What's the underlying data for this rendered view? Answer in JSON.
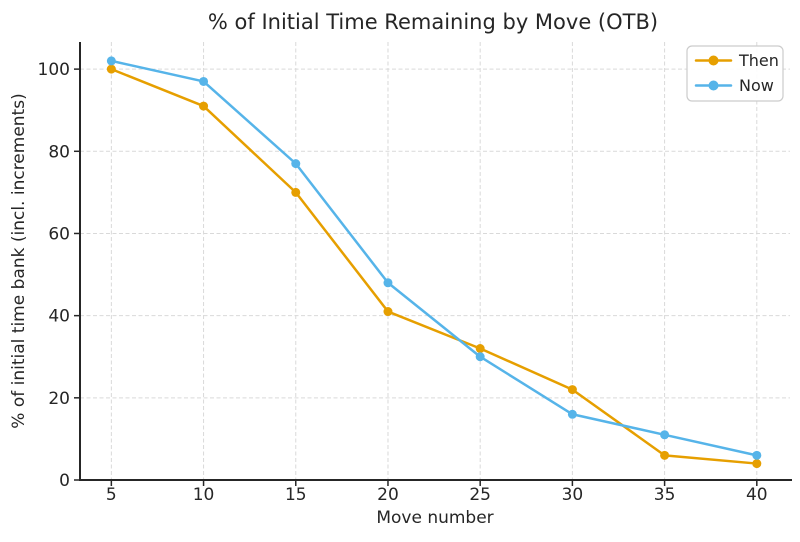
{
  "chart_data": {
    "type": "line",
    "title": "% of Initial Time Remaining by Move (OTB)",
    "xlabel": "Move number",
    "ylabel": "% of initial time bank (incl. increments)",
    "x": [
      5,
      10,
      15,
      20,
      25,
      30,
      35,
      40
    ],
    "series": [
      {
        "name": "Then",
        "color": "#E69F00",
        "values": [
          100,
          91,
          70,
          41,
          32,
          22,
          6,
          4
        ]
      },
      {
        "name": "Now",
        "color": "#56B4E9",
        "values": [
          102,
          97,
          77,
          48,
          30,
          16,
          11,
          6
        ]
      }
    ],
    "xticks": [
      5,
      10,
      15,
      20,
      25,
      30,
      35,
      40
    ],
    "yticks": [
      0,
      20,
      40,
      60,
      80,
      100
    ],
    "xlim": [
      3.3,
      41.8
    ],
    "ylim": [
      0,
      106.6
    ],
    "grid": true,
    "legend_position": "upper right",
    "grid_color": "#d9d9d9",
    "spine_color": "#262626",
    "text_color": "#262626",
    "legend_border_color": "#cccccc"
  }
}
